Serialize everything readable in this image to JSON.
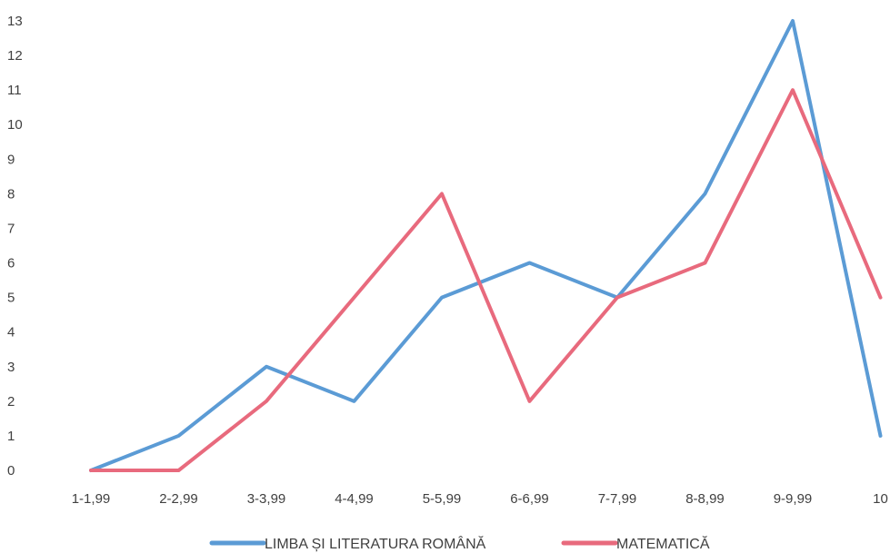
{
  "chart_data": {
    "type": "line",
    "title": "",
    "xlabel": "",
    "ylabel": "",
    "categories": [
      "1-1,99",
      "2-2,99",
      "3-3,99",
      "4-4,99",
      "5-5,99",
      "6-6,99",
      "7-7,99",
      "8-8,99",
      "9-9,99",
      "10"
    ],
    "ylim": [
      0,
      13
    ],
    "yticks": [
      0,
      1,
      2,
      3,
      4,
      5,
      6,
      7,
      8,
      9,
      10,
      11,
      12,
      13
    ],
    "grid": false,
    "legend_position": "bottom",
    "series": [
      {
        "name": "LIMBA ȘI LITERATURA ROMÂNĂ",
        "color": "#5b9bd5",
        "values": [
          0,
          1,
          3,
          2,
          5,
          6,
          5,
          8,
          13,
          1
        ]
      },
      {
        "name": "MATEMATICĂ",
        "color": "#e86a7d",
        "values": [
          0,
          0,
          2,
          5,
          8,
          2,
          5,
          6,
          11,
          5
        ]
      }
    ]
  }
}
